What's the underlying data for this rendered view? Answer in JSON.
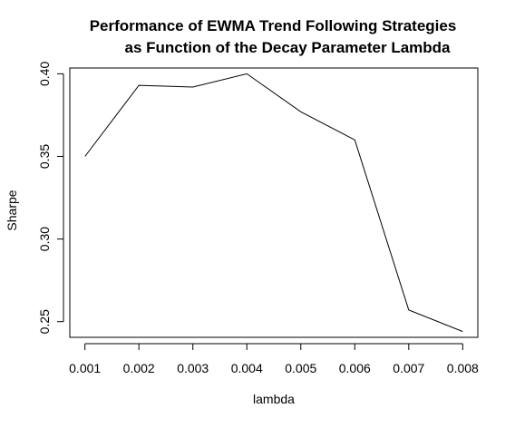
{
  "chart_data": {
    "type": "line",
    "title_lines": [
      "Performance of EWMA Trend Following Strategies",
      "as Function of the Decay Parameter Lambda"
    ],
    "xlabel": "lambda",
    "ylabel": "Sharpe",
    "x": [
      0.001,
      0.002,
      0.003,
      0.004,
      0.005,
      0.006,
      0.007,
      0.008
    ],
    "x_tick_labels": [
      "0.001",
      "0.002",
      "0.003",
      "0.004",
      "0.005",
      "0.006",
      "0.007",
      "0.008"
    ],
    "y": [
      0.35,
      0.393,
      0.392,
      0.4,
      0.377,
      0.36,
      0.257,
      0.244
    ],
    "y_ticks": [
      0.25,
      0.3,
      0.35,
      0.4
    ],
    "y_tick_labels": [
      "0.25",
      "0.30",
      "0.35",
      "0.40"
    ],
    "ylim": [
      0.2405,
      0.4035
    ],
    "xlim": [
      0.00072,
      0.00828
    ],
    "grid": false,
    "line_color": "#000000"
  }
}
